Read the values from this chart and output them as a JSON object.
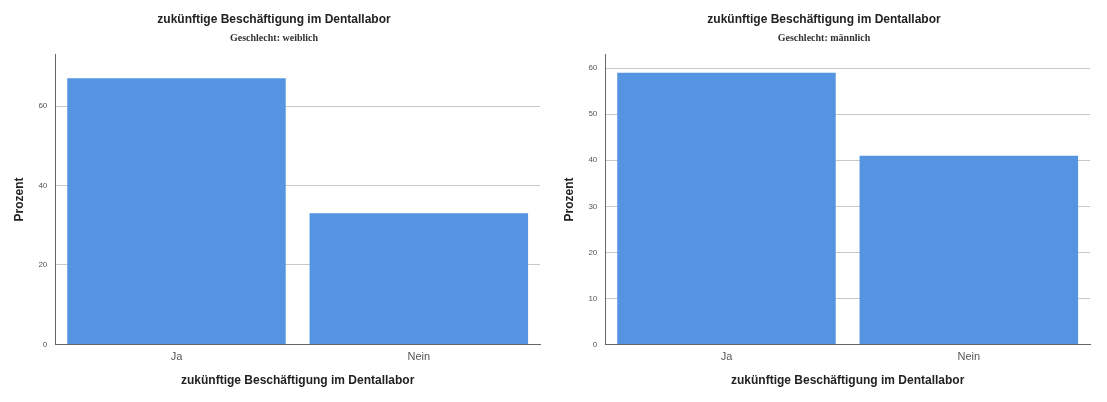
{
  "chart_data": [
    {
      "type": "bar",
      "title": "zukünftige Beschäftigung im Dentallabor",
      "subtitle": "Geschlecht: weiblich",
      "xlabel": "zukünftige Beschäftigung im Dentallabor",
      "ylabel": "Prozent",
      "categories": [
        "Ja",
        "Nein"
      ],
      "values": [
        67,
        33
      ],
      "color": "#5594e0",
      "ylim": [
        0,
        73
      ],
      "yticks": [
        0,
        20,
        40,
        60
      ],
      "grid": "y",
      "legend": false
    },
    {
      "type": "bar",
      "title": "zukünftige Beschäftigung im Dentallabor",
      "subtitle": "Geschlecht: männlich",
      "xlabel": "zukünftige Beschäftigung im Dentallabor",
      "ylabel": "Prozent",
      "categories": [
        "Ja",
        "Nein"
      ],
      "values": [
        59,
        41
      ],
      "color": "#5594e0",
      "ylim": [
        0,
        63
      ],
      "yticks": [
        0,
        10,
        20,
        30,
        40,
        50,
        60
      ],
      "grid": "y",
      "legend": false
    }
  ]
}
